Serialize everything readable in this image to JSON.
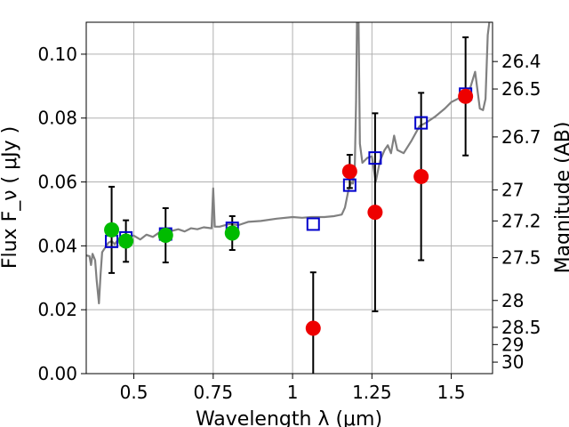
{
  "chart_data": {
    "type": "scatter",
    "xlabel": "Wavelength  λ (μm)",
    "ylabel": "Flux  F_ν  ( μJy )",
    "y2label": "Magnitude (AB)",
    "xlim": [
      0.35,
      1.63
    ],
    "ylim": [
      0.0,
      0.11
    ],
    "grid": true,
    "xticks": [
      0.5,
      0.75,
      1.0,
      1.25,
      1.5
    ],
    "xtick_labels": [
      "0.5",
      "0.75",
      "1",
      "1.25",
      "1.5"
    ],
    "yticks": [
      0.0,
      0.02,
      0.04,
      0.06,
      0.08,
      0.1
    ],
    "ytick_labels": [
      "0.00",
      "0.02",
      "0.04",
      "0.06",
      "0.08",
      "0.10"
    ],
    "right_axis_ticks": [
      {
        "label": "26.4",
        "flux": 0.0977
      },
      {
        "label": "26.5",
        "flux": 0.0891
      },
      {
        "label": "26.7",
        "flux": 0.0741
      },
      {
        "label": "27",
        "flux": 0.0575
      },
      {
        "label": "27.2",
        "flux": 0.0478
      },
      {
        "label": "27.5",
        "flux": 0.0363
      },
      {
        "label": "28",
        "flux": 0.0229
      },
      {
        "label": "28.5",
        "flux": 0.0145
      },
      {
        "label": "29",
        "flux": 0.0091
      },
      {
        "label": "30",
        "flux": 0.0036
      }
    ],
    "colors": {
      "spectrum": "#808080",
      "model_box": "#0000cc",
      "green_points": "#00bb00",
      "red_points": "#ee0000",
      "errorbar": "#000000",
      "grid": "#b0b0b0"
    },
    "series": [
      {
        "marker": "square-open",
        "points": [
          {
            "x": 0.43,
            "y": 0.0414
          },
          {
            "x": 0.475,
            "y": 0.0425
          },
          {
            "x": 0.6,
            "y": 0.0437
          },
          {
            "x": 0.81,
            "y": 0.0455
          },
          {
            "x": 1.065,
            "y": 0.0468
          },
          {
            "x": 1.18,
            "y": 0.059
          },
          {
            "x": 1.26,
            "y": 0.0675
          },
          {
            "x": 1.405,
            "y": 0.0785
          },
          {
            "x": 1.545,
            "y": 0.0875
          }
        ]
      },
      {
        "marker": "circle-green",
        "points": [
          {
            "x": 0.43,
            "y": 0.045,
            "err": 0.0135
          },
          {
            "x": 0.475,
            "y": 0.0415,
            "err": 0.0065
          },
          {
            "x": 0.6,
            "y": 0.0433,
            "err": 0.0085
          },
          {
            "x": 0.81,
            "y": 0.044,
            "err": 0.0053
          }
        ]
      },
      {
        "marker": "circle-red",
        "points": [
          {
            "x": 1.065,
            "y": 0.0142,
            "err": 0.0175
          },
          {
            "x": 1.18,
            "y": 0.0633,
            "err": 0.0052
          },
          {
            "x": 1.26,
            "y": 0.0505,
            "err": 0.031
          },
          {
            "x": 1.405,
            "y": 0.0617,
            "err": 0.0262
          },
          {
            "x": 1.545,
            "y": 0.0868,
            "err": 0.0185
          }
        ]
      },
      {
        "marker": "line",
        "points": [
          {
            "x": 0.35,
            "y": 0.037
          },
          {
            "x": 0.36,
            "y": 0.0368
          },
          {
            "x": 0.365,
            "y": 0.034
          },
          {
            "x": 0.37,
            "y": 0.0375
          },
          {
            "x": 0.378,
            "y": 0.0355
          },
          {
            "x": 0.383,
            "y": 0.029
          },
          {
            "x": 0.39,
            "y": 0.022
          },
          {
            "x": 0.395,
            "y": 0.031
          },
          {
            "x": 0.4,
            "y": 0.038
          },
          {
            "x": 0.41,
            "y": 0.0395
          },
          {
            "x": 0.42,
            "y": 0.041
          },
          {
            "x": 0.43,
            "y": 0.0415
          },
          {
            "x": 0.44,
            "y": 0.0405
          },
          {
            "x": 0.45,
            "y": 0.042
          },
          {
            "x": 0.46,
            "y": 0.043
          },
          {
            "x": 0.47,
            "y": 0.0425
          },
          {
            "x": 0.48,
            "y": 0.043
          },
          {
            "x": 0.5,
            "y": 0.0432
          },
          {
            "x": 0.52,
            "y": 0.042
          },
          {
            "x": 0.54,
            "y": 0.0435
          },
          {
            "x": 0.56,
            "y": 0.0428
          },
          {
            "x": 0.58,
            "y": 0.0442
          },
          {
            "x": 0.6,
            "y": 0.0438
          },
          {
            "x": 0.62,
            "y": 0.0447
          },
          {
            "x": 0.64,
            "y": 0.0452
          },
          {
            "x": 0.66,
            "y": 0.0445
          },
          {
            "x": 0.68,
            "y": 0.0455
          },
          {
            "x": 0.7,
            "y": 0.0452
          },
          {
            "x": 0.72,
            "y": 0.0458
          },
          {
            "x": 0.745,
            "y": 0.0455
          },
          {
            "x": 0.75,
            "y": 0.058
          },
          {
            "x": 0.755,
            "y": 0.046
          },
          {
            "x": 0.77,
            "y": 0.046
          },
          {
            "x": 0.8,
            "y": 0.0468
          },
          {
            "x": 0.83,
            "y": 0.0465
          },
          {
            "x": 0.86,
            "y": 0.0475
          },
          {
            "x": 0.9,
            "y": 0.0478
          },
          {
            "x": 0.95,
            "y": 0.0485
          },
          {
            "x": 1.0,
            "y": 0.049
          },
          {
            "x": 1.03,
            "y": 0.0488
          },
          {
            "x": 1.06,
            "y": 0.049
          },
          {
            "x": 1.1,
            "y": 0.049
          },
          {
            "x": 1.13,
            "y": 0.0493
          },
          {
            "x": 1.155,
            "y": 0.0498
          },
          {
            "x": 1.165,
            "y": 0.052
          },
          {
            "x": 1.175,
            "y": 0.057
          },
          {
            "x": 1.185,
            "y": 0.06
          },
          {
            "x": 1.19,
            "y": 0.0595
          },
          {
            "x": 1.196,
            "y": 0.064
          },
          {
            "x": 1.2,
            "y": 0.085
          },
          {
            "x": 1.203,
            "y": 0.11
          },
          {
            "x": 1.208,
            "y": 0.11
          },
          {
            "x": 1.212,
            "y": 0.072
          },
          {
            "x": 1.22,
            "y": 0.066
          },
          {
            "x": 1.235,
            "y": 0.0675
          },
          {
            "x": 1.25,
            "y": 0.068
          },
          {
            "x": 1.262,
            "y": 0.06
          },
          {
            "x": 1.275,
            "y": 0.0665
          },
          {
            "x": 1.29,
            "y": 0.07
          },
          {
            "x": 1.3,
            "y": 0.0715
          },
          {
            "x": 1.31,
            "y": 0.069
          },
          {
            "x": 1.32,
            "y": 0.0745
          },
          {
            "x": 1.33,
            "y": 0.07
          },
          {
            "x": 1.35,
            "y": 0.069
          },
          {
            "x": 1.375,
            "y": 0.073
          },
          {
            "x": 1.4,
            "y": 0.0775
          },
          {
            "x": 1.42,
            "y": 0.0785
          },
          {
            "x": 1.45,
            "y": 0.0805
          },
          {
            "x": 1.48,
            "y": 0.083
          },
          {
            "x": 1.5,
            "y": 0.085
          },
          {
            "x": 1.52,
            "y": 0.086
          },
          {
            "x": 1.54,
            "y": 0.087
          },
          {
            "x": 1.56,
            "y": 0.0895
          },
          {
            "x": 1.575,
            "y": 0.0945
          },
          {
            "x": 1.59,
            "y": 0.083
          },
          {
            "x": 1.6,
            "y": 0.0825
          },
          {
            "x": 1.608,
            "y": 0.086
          },
          {
            "x": 1.615,
            "y": 0.106
          },
          {
            "x": 1.62,
            "y": 0.11
          }
        ]
      }
    ]
  }
}
